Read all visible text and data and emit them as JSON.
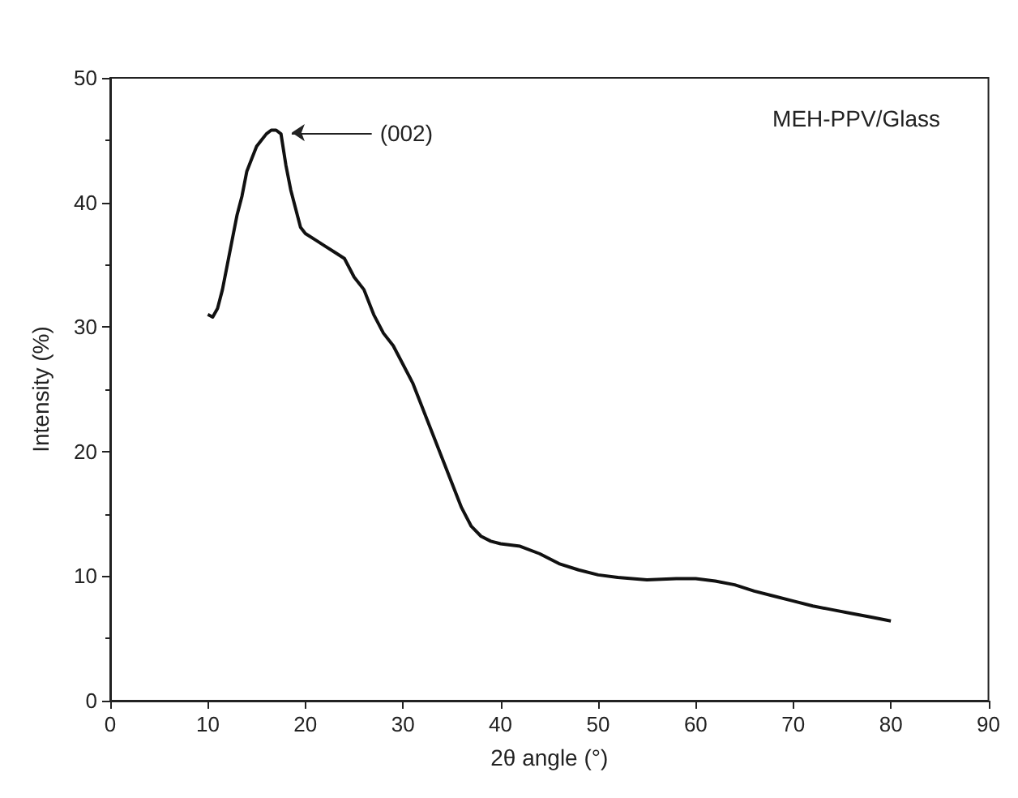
{
  "chart_data": {
    "type": "line",
    "xlabel": "2θ angle (°)",
    "ylabel": "Intensity (%)",
    "xlim": [
      0,
      90
    ],
    "xticks": [
      0,
      10,
      20,
      30,
      40,
      50,
      60,
      70,
      80,
      90
    ],
    "ylim": [
      0,
      50
    ],
    "yticks": [
      0,
      10,
      20,
      30,
      40,
      50
    ],
    "grid": false,
    "marker": "none",
    "line_style": "solid",
    "annotations": [
      {
        "text": "(002)",
        "x": 17.8,
        "y": 45.6
      },
      "MEH-PPV/Glass"
    ],
    "x": [
      10,
      10.5,
      11,
      11.5,
      12,
      12.5,
      13,
      13.5,
      14,
      14.5,
      15,
      15.5,
      16,
      16.5,
      17,
      17.5,
      18,
      18.5,
      19,
      19.5,
      20,
      21,
      22,
      23,
      24,
      25,
      26,
      27,
      28,
      29,
      30,
      31,
      32,
      33,
      34,
      35,
      36,
      37,
      38,
      39,
      40,
      42,
      44,
      46,
      48,
      50,
      52,
      55,
      58,
      60,
      62,
      64,
      66,
      68,
      70,
      72,
      74,
      76,
      78,
      80
    ],
    "series": [
      {
        "color": "#111111",
        "values": [
          31,
          30.8,
          31.5,
          33,
          35,
          37,
          39,
          40.5,
          42.5,
          43.5,
          44.5,
          45,
          45.5,
          45.8,
          45.8,
          45.5,
          43,
          41,
          39.5,
          38,
          37.5,
          37,
          36.5,
          36,
          35.5,
          34,
          33,
          31,
          29.5,
          28.5,
          27,
          25.5,
          23.5,
          21.5,
          19.5,
          17.5,
          15.5,
          14,
          13.2,
          12.8,
          12.6,
          12.4,
          11.8,
          11,
          10.5,
          10.1,
          9.9,
          9.7,
          9.8,
          9.8,
          9.6,
          9.3,
          8.8,
          8.4,
          8.0,
          7.6,
          7.3,
          7.0,
          6.7,
          6.4
        ]
      }
    ]
  }
}
